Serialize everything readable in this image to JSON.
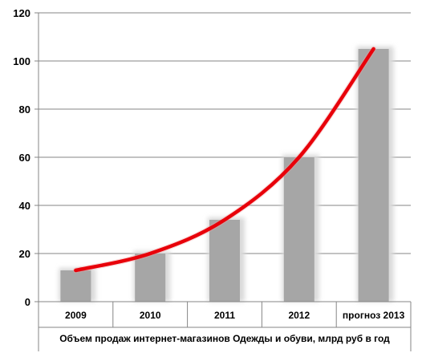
{
  "chart_data": {
    "type": "bar",
    "categories": [
      "2009",
      "2010",
      "2011",
      "2012",
      "прогноз 2013"
    ],
    "values": [
      13,
      20,
      34,
      60,
      105
    ],
    "ylim": [
      0,
      120
    ],
    "yticks": [
      0,
      20,
      40,
      60,
      80,
      100,
      120
    ],
    "xlabel": "Объем продаж интернет-магазинов Одежды и обуви, млрд руб в год",
    "ylabel": "",
    "title": "",
    "grid": true,
    "legend": "none",
    "trend_line": {
      "type": "line",
      "x": [
        "2009",
        "2010",
        "2011",
        "2012",
        "прогноз 2013"
      ],
      "y": [
        13,
        20,
        34,
        60,
        105
      ]
    },
    "colors": {
      "bar": "#a6a6a6",
      "bar_shadow": "#d9d9d9",
      "trend": "#e8000a",
      "grid": "#868686",
      "axis": "#868686"
    }
  }
}
